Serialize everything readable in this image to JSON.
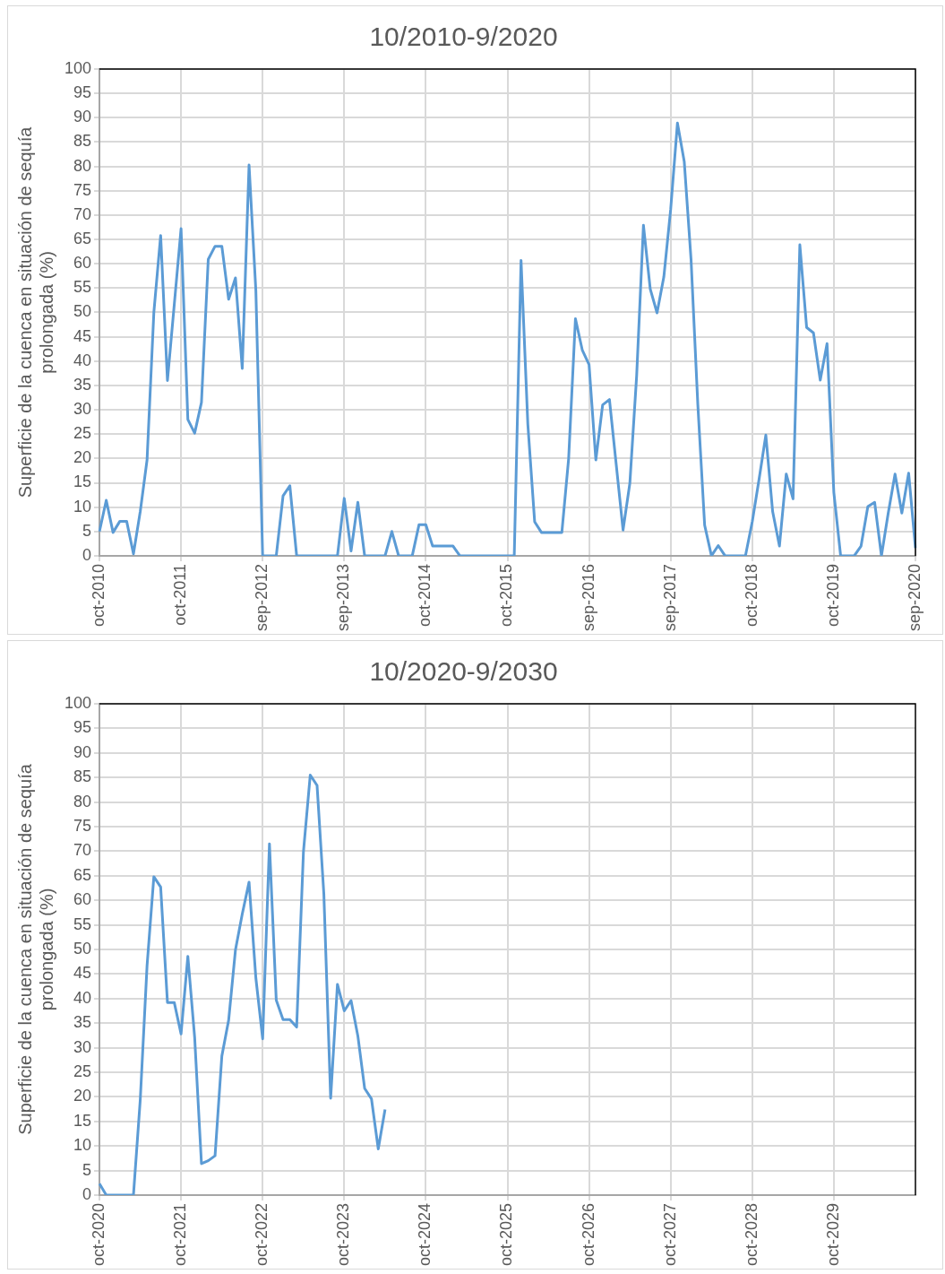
{
  "chart_data": [
    {
      "type": "line",
      "title": "10/2010-9/2020",
      "ylabel": "Superficie de la cuenca en situación de sequía prolongada (%)",
      "categories": [
        "oct-2010",
        null,
        null,
        null,
        null,
        null,
        null,
        null,
        null,
        null,
        null,
        null,
        "oct-2011",
        null,
        null,
        null,
        null,
        null,
        null,
        null,
        null,
        null,
        null,
        null,
        "sep-2012",
        null,
        null,
        null,
        null,
        null,
        null,
        null,
        null,
        null,
        null,
        null,
        "sep-2013",
        null,
        null,
        null,
        null,
        null,
        null,
        null,
        null,
        null,
        null,
        null,
        "oct-2014",
        null,
        null,
        null,
        null,
        null,
        null,
        null,
        null,
        null,
        null,
        null,
        "oct-2015",
        null,
        null,
        null,
        null,
        null,
        null,
        null,
        null,
        null,
        null,
        null,
        "sep-2016",
        null,
        null,
        null,
        null,
        null,
        null,
        null,
        null,
        null,
        null,
        null,
        "sep-2017",
        null,
        null,
        null,
        null,
        null,
        null,
        null,
        null,
        null,
        null,
        null,
        "oct-2018",
        null,
        null,
        null,
        null,
        null,
        null,
        null,
        null,
        null,
        null,
        null,
        "oct-2019",
        null,
        null,
        null,
        null,
        null,
        null,
        null,
        null,
        null,
        null,
        null,
        "sep-2020"
      ],
      "series": [
        {
          "color": "#5b9bd5",
          "values": [
            5,
            11.4,
            4.8,
            7.1,
            7.1,
            0.4,
            9.1,
            19.7,
            50,
            65.8,
            36,
            51.6,
            67.2,
            28,
            25.2,
            31.5,
            60.9,
            63.6,
            63.6,
            52.7,
            57.1,
            38.5,
            80.3,
            54.5,
            0,
            0,
            0,
            12.3,
            14.4,
            0,
            0,
            0,
            0,
            0,
            0,
            0,
            11.8,
            1,
            11,
            0,
            0,
            0,
            0,
            5,
            0,
            0,
            0,
            6.4,
            6.4,
            2,
            2,
            2,
            2,
            0,
            0,
            0,
            0,
            0,
            0,
            0,
            0,
            0,
            60.7,
            27,
            7,
            4.8,
            4.8,
            4.8,
            4.8,
            20,
            48.7,
            42.3,
            39.3,
            19.7,
            31,
            32.1,
            18.7,
            5.3,
            14.9,
            37,
            67.9,
            54.8,
            49.9,
            57.3,
            71.1,
            88.9,
            81,
            60.9,
            31,
            6.3,
            0,
            2.1,
            0,
            0,
            0,
            0,
            7,
            15.7,
            24.8,
            9.1,
            2,
            16.8,
            11.7,
            63.9,
            46.9,
            45.8,
            36.1,
            43.6,
            13,
            0,
            0,
            0,
            2,
            10.1,
            11,
            0,
            8.8,
            16.8,
            8.8,
            17,
            1.6
          ]
        }
      ],
      "ylim": [
        0,
        100
      ],
      "yticks": [
        0,
        5,
        10,
        15,
        20,
        25,
        30,
        35,
        40,
        45,
        50,
        55,
        60,
        65,
        70,
        75,
        80,
        85,
        90,
        95,
        100
      ],
      "grid": true,
      "legend": false
    },
    {
      "type": "line",
      "title": "10/2020-9/2030",
      "ylabel": "Superficie de la cuenca en situación de sequía prolongada (%)",
      "categories": [
        "oct-2020",
        null,
        null,
        null,
        null,
        null,
        null,
        null,
        null,
        null,
        null,
        null,
        "oct-2021",
        null,
        null,
        null,
        null,
        null,
        null,
        null,
        null,
        null,
        null,
        null,
        "oct-2022",
        null,
        null,
        null,
        null,
        null,
        null,
        null,
        null,
        null,
        null,
        null,
        "oct-2023",
        null,
        null,
        null,
        null,
        null,
        null,
        null,
        null,
        null,
        null,
        null,
        "oct-2024",
        null,
        null,
        null,
        null,
        null,
        null,
        null,
        null,
        null,
        null,
        null,
        "oct-2025",
        null,
        null,
        null,
        null,
        null,
        null,
        null,
        null,
        null,
        null,
        null,
        "oct-2026",
        null,
        null,
        null,
        null,
        null,
        null,
        null,
        null,
        null,
        null,
        null,
        "oct-2027",
        null,
        null,
        null,
        null,
        null,
        null,
        null,
        null,
        null,
        null,
        null,
        "oct-2028",
        null,
        null,
        null,
        null,
        null,
        null,
        null,
        null,
        null,
        null,
        null,
        "oct-2029",
        null,
        null,
        null,
        null,
        null,
        null,
        null,
        null,
        null,
        null,
        null,
        null
      ],
      "series": [
        {
          "color": "#5b9bd5",
          "values": [
            2.3,
            0,
            0,
            0,
            0,
            0,
            19.4,
            46.7,
            64.8,
            62.7,
            39.2,
            39.2,
            32.8,
            48.6,
            32.1,
            6.4,
            7,
            8,
            28.3,
            35.6,
            49.9,
            57.2,
            63.7,
            44.2,
            31.8,
            71.5,
            39.7,
            35.7,
            35.7,
            34.2,
            69.9,
            85.5,
            83.4,
            61.3,
            19.7,
            42.9,
            37.5,
            39.6,
            32.4,
            21.7,
            19.6,
            9.4,
            17.4,
            null,
            null,
            null,
            null,
            null,
            null,
            null,
            null,
            null,
            null,
            null,
            null,
            null,
            null,
            null,
            null,
            null,
            null,
            null,
            null,
            null,
            null,
            null,
            null,
            null,
            null,
            null,
            null,
            null,
            null,
            null,
            null,
            null,
            null,
            null,
            null,
            null,
            null,
            null,
            null,
            null,
            null,
            null,
            null,
            null,
            null,
            null,
            null,
            null,
            null,
            null,
            null,
            null,
            null,
            null,
            null,
            null,
            null,
            null,
            null,
            null,
            null,
            null,
            null,
            null,
            null,
            null,
            null,
            null,
            null,
            null,
            null,
            null,
            null,
            null,
            null,
            null,
            null
          ]
        }
      ],
      "ylim": [
        0,
        100
      ],
      "yticks": [
        0,
        5,
        10,
        15,
        20,
        25,
        30,
        35,
        40,
        45,
        50,
        55,
        60,
        65,
        70,
        75,
        80,
        85,
        90,
        95,
        100
      ],
      "grid": true,
      "legend": false
    }
  ]
}
